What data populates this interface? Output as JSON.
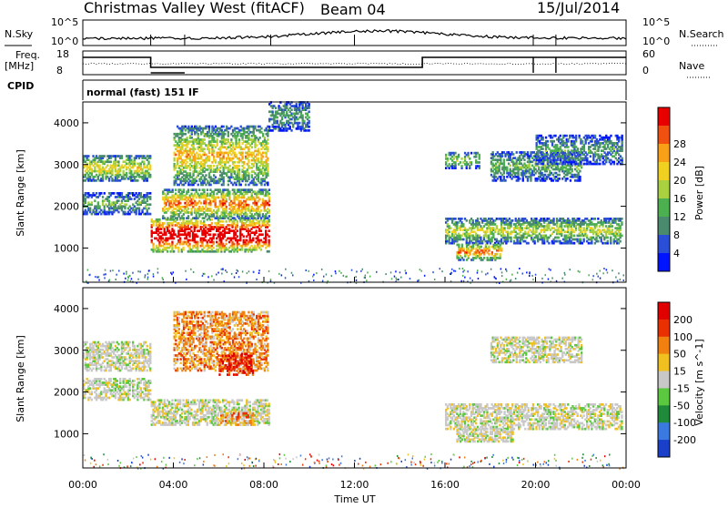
{
  "header": {
    "station": "Christmas Valley West (fitACF)",
    "beam": "Beam 04",
    "date": "15/Jul/2014"
  },
  "top_labels": {
    "nsky": "N.Sky",
    "nsearch": "N.Search",
    "freq_line1": "Freq.",
    "freq_line2": "[MHz]",
    "nave": "Nave",
    "cpid": "CPID",
    "cpid_value": "normal (fast) 151 IF",
    "noise_ticks_left": [
      "10^5",
      "10^0"
    ],
    "noise_ticks_right": [
      "10^5",
      "10^0"
    ],
    "freq_ticks": [
      "18",
      "8"
    ],
    "nave_ticks": [
      "60",
      "0"
    ]
  },
  "chart_data": [
    {
      "type": "heatmap",
      "ylabel": "Slant Range [km]",
      "xlabel": "Time UT",
      "x_ticks": [
        "00:00",
        "04:00",
        "08:00",
        "12:00",
        "16:00",
        "20:00",
        "00:00"
      ],
      "y_ticks": [
        1000,
        2000,
        3000,
        4000
      ],
      "ylim": [
        180,
        4500
      ],
      "xlim_hours": [
        0,
        24
      ],
      "colorbar": {
        "label": "Power [dB]",
        "ticks": [
          "4",
          "8",
          "12",
          "16",
          "20",
          "24",
          "28"
        ],
        "colors": [
          "#0014ff",
          "#2a4fd6",
          "#4a8a6e",
          "#4caf50",
          "#a8d040",
          "#f0d020",
          "#f8a018",
          "#f05010",
          "#e80000"
        ]
      },
      "regions": [
        {
          "t": [
            0,
            3
          ],
          "r": [
            2600,
            3200
          ],
          "level": 0.45
        },
        {
          "t": [
            0,
            3
          ],
          "r": [
            1800,
            2300
          ],
          "level": 0.3
        },
        {
          "t": [
            3,
            8.2
          ],
          "r": [
            900,
            1700
          ],
          "level": 0.9
        },
        {
          "t": [
            3.5,
            8.2
          ],
          "r": [
            1700,
            2400
          ],
          "level": 0.6
        },
        {
          "t": [
            4,
            8.2
          ],
          "r": [
            2500,
            3900
          ],
          "level": 0.5
        },
        {
          "t": [
            8.2,
            10
          ],
          "r": [
            3800,
            4500
          ],
          "level": 0.25
        },
        {
          "t": [
            16,
            17.5
          ],
          "r": [
            2900,
            3300
          ],
          "level": 0.35
        },
        {
          "t": [
            16,
            23.8
          ],
          "r": [
            1100,
            1700
          ],
          "level": 0.4
        },
        {
          "t": [
            16.5,
            18.5
          ],
          "r": [
            700,
            1100
          ],
          "level": 0.6
        },
        {
          "t": [
            18,
            22
          ],
          "r": [
            2600,
            3300
          ],
          "level": 0.3
        },
        {
          "t": [
            20,
            23.8
          ],
          "r": [
            3000,
            3700
          ],
          "level": 0.25
        }
      ]
    },
    {
      "type": "heatmap",
      "ylabel": "Slant Range [km]",
      "xlabel": "Time UT",
      "x_ticks": [
        "00:00",
        "04:00",
        "08:00",
        "12:00",
        "16:00",
        "20:00",
        "00:00"
      ],
      "y_ticks": [
        1000,
        2000,
        3000,
        4000
      ],
      "ylim": [
        180,
        4500
      ],
      "xlim_hours": [
        0,
        24
      ],
      "colorbar": {
        "label": "Velocity [m s^-1]",
        "ticks": [
          "200",
          "100",
          "50",
          "15",
          "-15",
          "-50",
          "-100",
          "-200"
        ],
        "colors": [
          "#1a3fc8",
          "#3a7ae0",
          "#1e8a3a",
          "#5cc840",
          "#c8c8c8",
          "#f0c020",
          "#f08010",
          "#e83000",
          "#e00000"
        ]
      },
      "regions": [
        {
          "t": [
            0,
            3
          ],
          "r": [
            2500,
            3200
          ],
          "kind": "gray"
        },
        {
          "t": [
            0,
            3
          ],
          "r": [
            1800,
            2300
          ],
          "kind": "gray"
        },
        {
          "t": [
            3,
            8.2
          ],
          "r": [
            1200,
            1800
          ],
          "kind": "gray"
        },
        {
          "t": [
            4,
            8.2
          ],
          "r": [
            2500,
            3900
          ],
          "kind": "orange"
        },
        {
          "t": [
            6,
            7.5
          ],
          "r": [
            2400,
            2900
          ],
          "kind": "red"
        },
        {
          "t": [
            6,
            7.5
          ],
          "r": [
            1200,
            1500
          ],
          "kind": "orange"
        },
        {
          "t": [
            16,
            23.8
          ],
          "r": [
            1100,
            1700
          ],
          "kind": "gray"
        },
        {
          "t": [
            16.5,
            19
          ],
          "r": [
            800,
            1100
          ],
          "kind": "gray"
        },
        {
          "t": [
            18,
            22
          ],
          "r": [
            2700,
            3300
          ],
          "kind": "gray"
        }
      ]
    }
  ]
}
